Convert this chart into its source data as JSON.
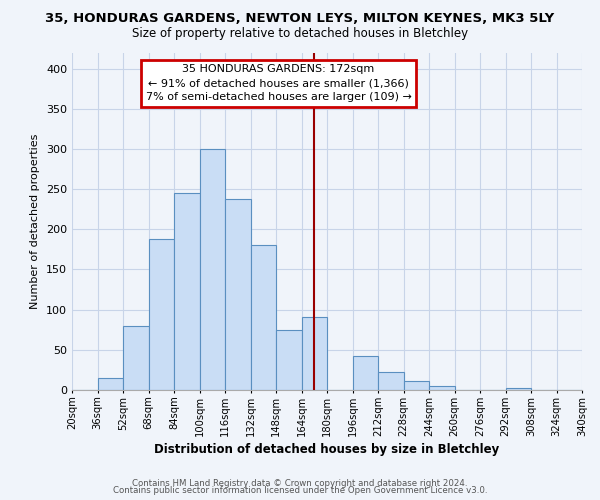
{
  "title": "35, HONDURAS GARDENS, NEWTON LEYS, MILTON KEYNES, MK3 5LY",
  "subtitle": "Size of property relative to detached houses in Bletchley",
  "xlabel": "Distribution of detached houses by size in Bletchley",
  "ylabel": "Number of detached properties",
  "bin_edges": [
    20,
    36,
    52,
    68,
    84,
    100,
    116,
    132,
    148,
    164,
    180,
    196,
    212,
    228,
    244,
    260,
    276,
    292,
    308,
    324,
    340
  ],
  "bar_heights": [
    0,
    15,
    80,
    188,
    245,
    300,
    238,
    181,
    75,
    91,
    0,
    42,
    22,
    11,
    5,
    0,
    0,
    3,
    0,
    0
  ],
  "bar_color": "#c9ddf5",
  "bar_edge_color": "#5a8fc0",
  "vline_x": 172,
  "vline_color": "#990000",
  "annotation_title": "35 HONDURAS GARDENS: 172sqm",
  "annotation_line1": "← 91% of detached houses are smaller (1,366)",
  "annotation_line2": "7% of semi-detached houses are larger (109) →",
  "annotation_box_color": "#ffffff",
  "annotation_box_edge": "#cc0000",
  "ylim": [
    0,
    420
  ],
  "xlim": [
    20,
    340
  ],
  "yticks": [
    0,
    50,
    100,
    150,
    200,
    250,
    300,
    350,
    400
  ],
  "footer1": "Contains HM Land Registry data © Crown copyright and database right 2024.",
  "footer2": "Contains public sector information licensed under the Open Government Licence v3.0.",
  "background_color": "#f0f4fa",
  "grid_color": "#c8d4e8"
}
